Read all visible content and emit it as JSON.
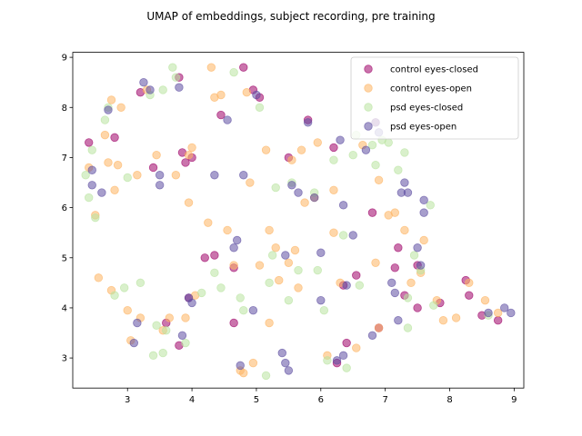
{
  "chart_data": {
    "type": "scatter",
    "title": "UMAP of embeddings, subject recording, pre training",
    "xlabel": "",
    "ylabel": "",
    "xlim": [
      2.15,
      9.15
    ],
    "ylim": [
      2.4,
      9.1
    ],
    "xticks": [
      3,
      4,
      5,
      6,
      7,
      8,
      9
    ],
    "yticks": [
      3,
      4,
      5,
      6,
      7,
      8,
      9
    ],
    "grid": false,
    "legend": {
      "placement": "top-right"
    },
    "series": [
      {
        "name": "control eyes-closed",
        "color": "#9e0168",
        "points": [
          [
            2.4,
            7.3
          ],
          [
            2.8,
            7.4
          ],
          [
            3.2,
            8.3
          ],
          [
            3.4,
            6.8
          ],
          [
            3.8,
            8.6
          ],
          [
            3.85,
            7.1
          ],
          [
            3.9,
            6.9
          ],
          [
            4.0,
            7.0
          ],
          [
            3.6,
            3.7
          ],
          [
            3.8,
            3.25
          ],
          [
            3.95,
            4.2
          ],
          [
            4.2,
            5.0
          ],
          [
            4.35,
            5.05
          ],
          [
            4.45,
            7.85
          ],
          [
            4.65,
            3.7
          ],
          [
            4.65,
            4.8
          ],
          [
            4.8,
            8.8
          ],
          [
            4.95,
            8.35
          ],
          [
            5.05,
            8.2
          ],
          [
            5.5,
            7.0
          ],
          [
            5.8,
            7.75
          ],
          [
            6.2,
            7.2
          ],
          [
            6.25,
            2.9
          ],
          [
            6.4,
            3.3
          ],
          [
            6.35,
            4.45
          ],
          [
            6.55,
            4.65
          ],
          [
            6.8,
            5.9
          ],
          [
            6.85,
            7.7
          ],
          [
            6.9,
            3.6
          ],
          [
            7.15,
            4.8
          ],
          [
            7.2,
            5.2
          ],
          [
            7.3,
            4.25
          ],
          [
            7.5,
            4.85
          ],
          [
            7.5,
            4.0
          ],
          [
            7.85,
            4.1
          ],
          [
            8.25,
            4.55
          ],
          [
            8.3,
            4.25
          ],
          [
            8.5,
            3.85
          ],
          [
            8.75,
            3.75
          ]
        ]
      },
      {
        "name": "control eyes-open",
        "color": "#fdb462",
        "points": [
          [
            2.4,
            6.8
          ],
          [
            2.5,
            5.85
          ],
          [
            2.55,
            4.6
          ],
          [
            2.65,
            7.45
          ],
          [
            2.7,
            6.9
          ],
          [
            2.75,
            4.35
          ],
          [
            2.75,
            8.15
          ],
          [
            2.8,
            6.35
          ],
          [
            2.85,
            6.85
          ],
          [
            2.9,
            8.0
          ],
          [
            3.0,
            3.95
          ],
          [
            3.05,
            3.35
          ],
          [
            3.15,
            6.65
          ],
          [
            3.2,
            3.8
          ],
          [
            3.3,
            8.35
          ],
          [
            3.45,
            7.05
          ],
          [
            3.55,
            3.55
          ],
          [
            3.65,
            3.8
          ],
          [
            3.75,
            6.65
          ],
          [
            3.9,
            3.8
          ],
          [
            3.95,
            6.1
          ],
          [
            3.95,
            7.05
          ],
          [
            4.0,
            7.2
          ],
          [
            4.05,
            4.25
          ],
          [
            4.25,
            5.7
          ],
          [
            4.3,
            8.8
          ],
          [
            4.35,
            8.2
          ],
          [
            4.45,
            8.25
          ],
          [
            4.55,
            5.55
          ],
          [
            4.65,
            4.85
          ],
          [
            4.75,
            2.75
          ],
          [
            4.8,
            2.7
          ],
          [
            4.85,
            8.3
          ],
          [
            4.9,
            6.5
          ],
          [
            4.95,
            2.9
          ],
          [
            5.05,
            4.85
          ],
          [
            5.15,
            7.15
          ],
          [
            5.2,
            3.7
          ],
          [
            5.2,
            5.55
          ],
          [
            5.3,
            5.2
          ],
          [
            5.35,
            4.55
          ],
          [
            5.5,
            4.9
          ],
          [
            5.55,
            6.95
          ],
          [
            5.6,
            5.15
          ],
          [
            5.65,
            4.4
          ],
          [
            5.7,
            7.15
          ],
          [
            5.75,
            6.1
          ],
          [
            5.9,
            6.2
          ],
          [
            5.95,
            7.3
          ],
          [
            6.1,
            3.05
          ],
          [
            6.2,
            6.35
          ],
          [
            6.2,
            5.5
          ],
          [
            6.3,
            4.5
          ],
          [
            6.55,
            3.2
          ],
          [
            6.65,
            7.25
          ],
          [
            6.85,
            4.9
          ],
          [
            6.9,
            6.55
          ],
          [
            6.9,
            3.6
          ],
          [
            7.05,
            5.85
          ],
          [
            7.15,
            5.9
          ],
          [
            7.3,
            5.55
          ],
          [
            7.4,
            4.5
          ],
          [
            7.55,
            4.7
          ],
          [
            7.6,
            5.35
          ],
          [
            7.8,
            4.15
          ],
          [
            7.9,
            3.75
          ],
          [
            8.1,
            3.8
          ],
          [
            8.3,
            4.5
          ],
          [
            8.55,
            4.15
          ],
          [
            8.75,
            3.9
          ]
        ]
      },
      {
        "name": "psd eyes-closed",
        "color": "#b9e3a0",
        "points": [
          [
            2.35,
            6.65
          ],
          [
            2.4,
            6.2
          ],
          [
            2.45,
            7.15
          ],
          [
            2.5,
            5.8
          ],
          [
            2.65,
            7.75
          ],
          [
            2.7,
            8.0
          ],
          [
            2.8,
            4.25
          ],
          [
            2.95,
            4.4
          ],
          [
            3.0,
            6.6
          ],
          [
            3.2,
            4.5
          ],
          [
            3.35,
            8.25
          ],
          [
            3.4,
            3.05
          ],
          [
            3.45,
            3.65
          ],
          [
            3.55,
            8.35
          ],
          [
            3.55,
            3.1
          ],
          [
            3.6,
            3.55
          ],
          [
            3.7,
            8.8
          ],
          [
            3.75,
            8.6
          ],
          [
            3.9,
            3.3
          ],
          [
            4.15,
            4.3
          ],
          [
            4.35,
            4.7
          ],
          [
            4.45,
            4.4
          ],
          [
            4.65,
            8.7
          ],
          [
            4.75,
            4.2
          ],
          [
            4.8,
            3.95
          ],
          [
            5.05,
            8.0
          ],
          [
            5.15,
            2.65
          ],
          [
            5.2,
            4.5
          ],
          [
            5.25,
            5.05
          ],
          [
            5.3,
            6.4
          ],
          [
            5.5,
            4.15
          ],
          [
            5.55,
            6.5
          ],
          [
            5.65,
            4.75
          ],
          [
            5.9,
            6.3
          ],
          [
            5.95,
            4.75
          ],
          [
            6.05,
            3.95
          ],
          [
            6.1,
            2.95
          ],
          [
            6.2,
            6.95
          ],
          [
            6.35,
            5.45
          ],
          [
            6.4,
            2.8
          ],
          [
            6.5,
            7.05
          ],
          [
            6.55,
            7.45
          ],
          [
            6.6,
            4.45
          ],
          [
            6.8,
            7.25
          ],
          [
            6.85,
            6.85
          ],
          [
            6.95,
            7.35
          ],
          [
            7.05,
            7.3
          ],
          [
            7.2,
            6.75
          ],
          [
            7.3,
            7.1
          ],
          [
            7.35,
            4.2
          ],
          [
            7.45,
            5.05
          ],
          [
            7.55,
            4.75
          ],
          [
            7.7,
            6.05
          ],
          [
            7.75,
            4.05
          ],
          [
            7.35,
            3.6
          ],
          [
            8.6,
            3.85
          ]
        ]
      },
      {
        "name": "psd eyes-open",
        "color": "#5e4fa2",
        "points": [
          [
            2.45,
            6.75
          ],
          [
            2.45,
            6.45
          ],
          [
            2.6,
            6.3
          ],
          [
            2.7,
            7.95
          ],
          [
            3.1,
            3.3
          ],
          [
            3.15,
            3.7
          ],
          [
            3.25,
            8.5
          ],
          [
            3.35,
            8.35
          ],
          [
            3.5,
            6.65
          ],
          [
            3.5,
            6.45
          ],
          [
            3.8,
            8.4
          ],
          [
            3.85,
            3.45
          ],
          [
            3.95,
            4.2
          ],
          [
            4.0,
            4.1
          ],
          [
            4.35,
            6.65
          ],
          [
            4.55,
            7.75
          ],
          [
            4.65,
            5.2
          ],
          [
            4.7,
            5.35
          ],
          [
            4.75,
            2.85
          ],
          [
            4.8,
            6.65
          ],
          [
            4.95,
            3.95
          ],
          [
            5.0,
            8.25
          ],
          [
            5.4,
            3.1
          ],
          [
            5.45,
            2.9
          ],
          [
            5.45,
            5.05
          ],
          [
            5.5,
            2.75
          ],
          [
            5.55,
            6.45
          ],
          [
            5.65,
            6.3
          ],
          [
            5.8,
            7.7
          ],
          [
            5.9,
            6.2
          ],
          [
            6.0,
            5.1
          ],
          [
            6.0,
            4.15
          ],
          [
            6.25,
            2.95
          ],
          [
            6.3,
            7.35
          ],
          [
            6.35,
            3.05
          ],
          [
            6.35,
            6.05
          ],
          [
            6.4,
            4.45
          ],
          [
            6.5,
            5.45
          ],
          [
            6.7,
            7.15
          ],
          [
            6.8,
            3.45
          ],
          [
            6.85,
            7.7
          ],
          [
            6.9,
            7.5
          ],
          [
            7.1,
            4.5
          ],
          [
            7.15,
            4.3
          ],
          [
            7.25,
            6.3
          ],
          [
            7.3,
            6.5
          ],
          [
            7.35,
            6.3
          ],
          [
            7.5,
            5.2
          ],
          [
            7.55,
            4.85
          ],
          [
            7.6,
            5.9
          ],
          [
            7.6,
            6.15
          ],
          [
            7.2,
            3.75
          ],
          [
            8.6,
            3.9
          ],
          [
            8.85,
            4.0
          ],
          [
            8.95,
            3.9
          ]
        ]
      }
    ]
  }
}
